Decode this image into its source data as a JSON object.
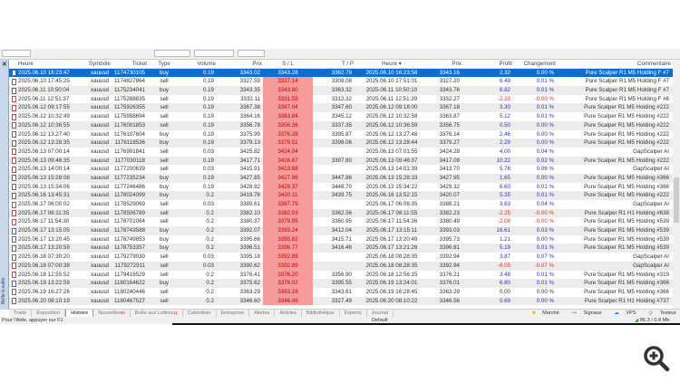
{
  "side": {
    "close": "✕",
    "label": "Boîte à outils"
  },
  "headers": [
    "Heure",
    "Symbole",
    "Ticket",
    "Type",
    "Volume",
    "Prix",
    "S / L",
    "T / P",
    "Heure ▾",
    "Prix",
    "Profit",
    "Changement",
    "Commentaire"
  ],
  "rows": [
    [
      "2025.06.10 16:23:47",
      "xauusd",
      "1174730105",
      "buy",
      "0.19",
      "3343.02",
      "3343.28",
      "3362.79",
      "2025.06.10 16:23:58",
      "3343.16",
      "2.32",
      "0.00 %",
      "Pure Scalper R1 M5 Holding F #7"
    ],
    [
      "2025.06.10 17:45:25",
      "xauusd",
      "1174827964",
      "sell",
      "0.19",
      "3327.59",
      "3327.14",
      "3308.08",
      "2025.06.10 17:51:01",
      "3327.20",
      "6.49",
      "0.01 %",
      "Pure Scalper R1 M5 Holding F #7"
    ],
    [
      "2025.06.11 10:50:04",
      "xauusd",
      "1175234041",
      "buy",
      "0.19",
      "3343.35",
      "3343.80",
      "3363.32",
      "2025.06.11 10:50:10",
      "3343.76",
      "6.82",
      "0.01 %",
      "Pure Scalper R1 M5 Holding F #7"
    ],
    [
      "2025.06.11 12:51:37",
      "xauusd",
      "1175288835",
      "sell",
      "0.19",
      "3332.11",
      "3331.59",
      "3312.32",
      "2025.06.11 12:51:39",
      "3332.27",
      "-2.33",
      "-0.00 %",
      "Pure Scalper R1 M5 Holding F #6"
    ],
    [
      "2025.06.12 09:17:55",
      "xauusd",
      "1175926355",
      "sell",
      "0.19",
      "3367.38",
      "3367.04",
      "3347.60",
      "2025.06.12 09:18:00",
      "3367.18",
      "3.30",
      "0.01 %",
      "Pure Scalper R1 M5 Holding #222"
    ],
    [
      "2025.06.12 10:32:49",
      "xauusd",
      "1175998694",
      "sell",
      "0.19",
      "3364.16",
      "3363.84",
      "3345.12",
      "2025.06.12 10:32:58",
      "3363.87",
      "5.12",
      "0.01 %",
      "Pure Scalper R1 M5 Holding #222"
    ],
    [
      "2025.06.12 10:36:55",
      "xauusd",
      "1176001853",
      "sell",
      "0.19",
      "3356.78",
      "3356.36",
      "3337.35",
      "2025.06.12 10:36:59",
      "3356.75",
      "0.50",
      "0.00 %",
      "Pure Scalper R1 M5 Holding #222"
    ],
    [
      "2025.06.12 13:27:40",
      "xauusd",
      "1176107604",
      "buy",
      "0.19",
      "3375.99",
      "3376.28",
      "3395.87",
      "2025.06.12 13:27:48",
      "3376.14",
      "2.46",
      "0.00 %",
      "Pure Scalper R1 M5 Holding #222"
    ],
    [
      "2025.06.12 13:28:35",
      "xauusd",
      "1176118536",
      "buy",
      "0.19",
      "3379.13",
      "3379.51",
      "3398.06",
      "2025.06.12 13:28:44",
      "3379.27",
      "2.29",
      "0.00 %",
      "Pure Scalper R1 M5 Holding #222"
    ],
    [
      "2025.06.13 07:00:14",
      "xauusd",
      "1176901841",
      "sell",
      "0.03",
      "3425.82",
      "3424.04",
      "",
      "2025.06.13 07:01:55",
      "3424.28",
      "4.00",
      "0.04 %",
      "GapScalper AI"
    ],
    [
      "2025.06.13 09:46:35",
      "xauusd",
      "1177030118",
      "sell",
      "0.19",
      "3417.71",
      "3416.87",
      "3397.80",
      "2025.06.13 09:46:37",
      "3417.09",
      "10.22",
      "0.02 %",
      "Pure Scalper R1 M5 Holding #222"
    ],
    [
      "2025.06.13 14:00:14",
      "xauusd",
      "1177200639",
      "sell",
      "0.03",
      "3415.91",
      "3413.68",
      "",
      "2025.06.13 14:01:39",
      "3413.70",
      "5.76",
      "0.06 %",
      "GapScalper AI"
    ],
    [
      "2025.06.13 15:28:08",
      "xauusd",
      "1177235234",
      "buy",
      "0.19",
      "3427.85",
      "3427.96",
      "3447.86",
      "2025.06.13 15:28:33",
      "3427.95",
      "1.65",
      "0.00 %",
      "Pure Scalper R1 M5 Holding #366"
    ],
    [
      "2025.06.13 15:34:06",
      "xauusd",
      "1177246486",
      "buy",
      "0.19",
      "3428.92",
      "3429.37",
      "3448.70",
      "2025.06.13 15:34:22",
      "3429.32",
      "6.60",
      "0.01 %",
      "Pure Scalper R1 M5 Holding #366"
    ],
    [
      "2025.06.16 13:45:31",
      "xauusd",
      "1178024099",
      "buy",
      "0.2",
      "3419.76",
      "3420.11",
      "3439.75",
      "2025.06.16 13:52:15",
      "3420.07",
      "5.35",
      "0.01 %",
      "Pure Scalper R1 M5 Holding #222"
    ],
    [
      "2025.06.17 06:00:02",
      "xauusd",
      "1178529069",
      "sell",
      "0.03",
      "3389.61",
      "3387.79",
      "",
      "2025.06.17 06:06:35",
      "3388.21",
      "3.63",
      "0.04 %",
      "GapScalper AI"
    ],
    [
      "2025.06.17 06:11:35",
      "xauusd",
      "1178506789",
      "sell",
      "0.2",
      "3382.10",
      "3382.03",
      "3362.56",
      "2025.06.17 06:11:55",
      "3382.23",
      "-2.25",
      "-0.00 %",
      "Pure Scalper R1 H1 Holding #638"
    ],
    [
      "2025.06.17 11:54:30",
      "xauusd",
      "1178701064",
      "sell",
      "0.2",
      "3380.37",
      "3379.95",
      "3360.95",
      "2025.06.17 11:54:36",
      "3380.49",
      "-2.08",
      "-0.00 %",
      "Pure Scalper R1 M5 Holding #539"
    ],
    [
      "2025.06.17 13:15:05",
      "xauusd",
      "1178743588",
      "buy",
      "0.2",
      "3392.07",
      "3393.24",
      "3412.04",
      "2025.06.17 13:15:11",
      "3393.03",
      "16.61",
      "0.03 %",
      "Pure Scalper R1 M5 Holding #539"
    ],
    [
      "2025.06.17 13:20:45",
      "xauusd",
      "1178749853",
      "buy",
      "0.2",
      "3395.66",
      "3395.82",
      "3415.71",
      "2025.06.17 13:20:49",
      "3395.73",
      "1.21",
      "0.00 %",
      "Pure Scalper R1 M5 Holding #539"
    ],
    [
      "2025.06.17 13:20:59",
      "xauusd",
      "1178753357",
      "buy",
      "0.2",
      "3396.51",
      "3396.77",
      "3416.46",
      "2025.06.17 13:21:26",
      "3396.81",
      "5.19",
      "0.01 %",
      "Pure Scalper R1 M5 Holding #539"
    ],
    [
      "2025.06.18 07:30:20",
      "xauusd",
      "1179279030",
      "sell",
      "0.03",
      "3395.19",
      "3392.89",
      "",
      "2025.06.18 08:28:35",
      "3392.94",
      "3.87",
      "0.07 %",
      "GapScalper AI"
    ],
    [
      "2025.06.18 07:00:38",
      "xauusd",
      "1179272911",
      "sell",
      "0.03",
      "3390.62",
      "3392.89",
      "",
      "2025.06.18 08:28:35",
      "3392.94",
      "-6.05",
      "-0.07 %",
      "GapScalper AI"
    ],
    [
      "2025.06.18 12:55:52",
      "xauusd",
      "1179418529",
      "sell",
      "0.2",
      "3376.41",
      "3376.20",
      "3356.90",
      "2025.06.18 12:56:15",
      "3376.21",
      "3.48",
      "0.01 %",
      "Pure Scalper R1 M5 Holding #319"
    ],
    [
      "2025.06.19 13:22:59",
      "xauusd",
      "1180164622",
      "buy",
      "0.2",
      "3375.62",
      "3376.02",
      "3395.55",
      "2025.06.19 13:24:01",
      "3376.01",
      "6.80",
      "0.01 %",
      "Pure Scalper R1 M5 Holding #366"
    ],
    [
      "2025.06.19 16:27:26",
      "xauusd",
      "1180240446",
      "sell",
      "0.2",
      "3363.29",
      "3363.16",
      "3343.61",
      "2025.06.19 16:28:45",
      "3363.29",
      "0.00",
      "0.00 %",
      "Pure Scalper R1 M5 Holding #366"
    ],
    [
      "2025.06.20 08:10:19",
      "xauusd",
      "1180467527",
      "sell",
      "0.2",
      "3346.60",
      "3346.49",
      "3327.49",
      "2025.06.20 08:10:22",
      "3346.56",
      "0.69",
      "0.00 %",
      "Pure Scalper R1 H1 Holding #737"
    ]
  ],
  "tabs": [
    {
      "label": "Trade"
    },
    {
      "label": "Exposition"
    },
    {
      "label": "Histoire",
      "active": true
    },
    {
      "label": "Nouvelles",
      "badge": "99"
    },
    {
      "label": "Boîte aux Lettres",
      "badge": "11"
    },
    {
      "label": "Calendrier"
    },
    {
      "label": "Entreprise"
    },
    {
      "label": "Alertes"
    },
    {
      "label": "Articles"
    },
    {
      "label": "Bibliothèque"
    },
    {
      "label": "Experts"
    },
    {
      "label": "Journal"
    }
  ],
  "right_tabs": [
    "Marché",
    "Signaux",
    "VPS",
    "Testeur"
  ],
  "status": {
    "help": "Pour l'Aide, appuyer sur F1",
    "profile": "Default",
    "traffic": "86.3 / 0.8 Mb"
  },
  "colors": {
    "selected": "#0f6dd0",
    "sl_bg": "#f79a9a",
    "profit_pos": "#3030c0",
    "profit_neg": "#e03030"
  }
}
